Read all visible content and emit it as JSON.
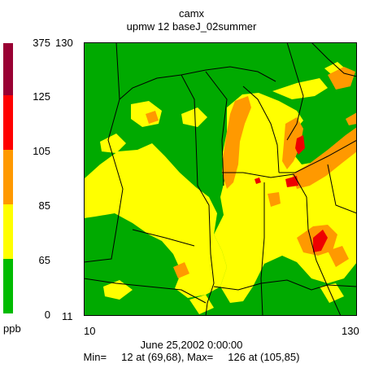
{
  "title_line1": "camx",
  "title_line2": "upmw 12 baseJ_02summer",
  "legend": {
    "unit": "ppb",
    "levels": [
      "375",
      "125",
      "105",
      "85",
      "65",
      "0"
    ],
    "colors": [
      "#990033",
      "#ff0000",
      "#ff9900",
      "#ffff00",
      "#00bb00"
    ]
  },
  "axes": {
    "y_top": "130",
    "y_bottom": "11",
    "x_left": "10",
    "x_right": "130"
  },
  "footer": {
    "timestamp": "June 25,2002 0:00:00",
    "stats": "Min=     12 at (69,68), Max=     126 at (105,85)"
  },
  "map_colors": {
    "green": "#00aa00",
    "yellow": "#ffff00",
    "orange": "#ff9900",
    "red": "#ee0000",
    "boundary": "#000000"
  }
}
